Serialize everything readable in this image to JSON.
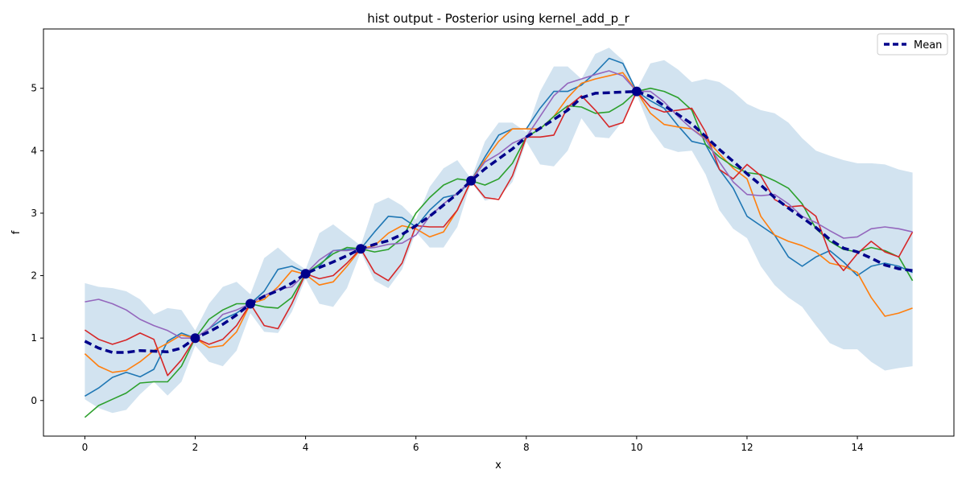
{
  "chart_data": {
    "type": "line",
    "title": "hist output - Posterior using kernel_add_p_r",
    "xlabel": "x",
    "ylabel": "f",
    "xlim": [
      -0.75,
      15.75
    ],
    "ylim": [
      -0.57,
      5.95
    ],
    "xticks": [
      0,
      2,
      4,
      6,
      8,
      10,
      12,
      14
    ],
    "yticks": [
      0,
      1,
      2,
      3,
      4,
      5
    ],
    "grid": false,
    "legend_placement": "top-right",
    "legend": [
      "Mean"
    ],
    "x": [
      0,
      0.25,
      0.5,
      0.75,
      1,
      1.25,
      1.5,
      1.75,
      2,
      2.25,
      2.5,
      2.75,
      3,
      3.25,
      3.5,
      3.75,
      4,
      4.25,
      4.5,
      4.75,
      5,
      5.25,
      5.5,
      5.75,
      6,
      6.25,
      6.5,
      6.75,
      7,
      7.25,
      7.5,
      7.75,
      8,
      8.25,
      8.5,
      8.75,
      9,
      9.25,
      9.5,
      9.75,
      10,
      10.25,
      10.5,
      10.75,
      11,
      11.25,
      11.5,
      11.75,
      12,
      12.25,
      12.5,
      12.75,
      13,
      13.25,
      13.5,
      13.75,
      14,
      14.25,
      14.5,
      14.75,
      15
    ],
    "mean": {
      "name": "Mean",
      "color": "#00008b",
      "values": [
        0.95,
        0.84,
        0.77,
        0.77,
        0.8,
        0.79,
        0.78,
        0.84,
        1.0,
        1.1,
        1.22,
        1.37,
        1.55,
        1.67,
        1.76,
        1.88,
        2.03,
        2.13,
        2.22,
        2.32,
        2.43,
        2.5,
        2.56,
        2.66,
        2.8,
        2.95,
        3.13,
        3.31,
        3.52,
        3.71,
        3.87,
        4.03,
        4.22,
        4.36,
        4.5,
        4.65,
        4.85,
        4.92,
        4.93,
        4.94,
        4.95,
        4.87,
        4.72,
        4.58,
        4.43,
        4.23,
        4.02,
        3.83,
        3.63,
        3.45,
        3.25,
        3.08,
        2.93,
        2.77,
        2.58,
        2.44,
        2.38,
        2.28,
        2.17,
        2.11,
        2.08
      ]
    },
    "band": {
      "color": "#a6c8e2",
      "upper": [
        1.88,
        1.82,
        1.8,
        1.75,
        1.62,
        1.38,
        1.48,
        1.45,
        1.12,
        1.55,
        1.82,
        1.9,
        1.7,
        2.28,
        2.45,
        2.25,
        2.1,
        2.68,
        2.82,
        2.65,
        2.48,
        3.15,
        3.25,
        3.12,
        2.9,
        3.42,
        3.72,
        3.85,
        3.55,
        4.15,
        4.45,
        4.45,
        4.3,
        4.95,
        5.35,
        5.35,
        5.15,
        5.55,
        5.65,
        5.45,
        4.98,
        5.4,
        5.45,
        5.3,
        5.1,
        5.15,
        5.1,
        4.95,
        4.75,
        4.65,
        4.6,
        4.45,
        4.2,
        4.0,
        3.92,
        3.85,
        3.8,
        3.8,
        3.78,
        3.7,
        3.65
      ],
      "lower": [
        0.02,
        -0.12,
        -0.2,
        -0.15,
        0.1,
        0.3,
        0.08,
        0.3,
        0.88,
        0.62,
        0.55,
        0.8,
        1.4,
        1.1,
        1.08,
        1.42,
        1.95,
        1.55,
        1.5,
        1.8,
        2.38,
        1.92,
        1.8,
        2.1,
        2.7,
        2.45,
        2.45,
        2.78,
        3.5,
        3.2,
        3.25,
        3.5,
        4.15,
        3.78,
        3.75,
        4.0,
        4.52,
        4.22,
        4.2,
        4.48,
        4.9,
        4.35,
        4.05,
        3.98,
        4.0,
        3.62,
        3.05,
        2.75,
        2.6,
        2.15,
        1.85,
        1.65,
        1.5,
        1.2,
        0.92,
        0.82,
        0.82,
        0.62,
        0.48,
        0.52,
        0.55
      ]
    },
    "samples": [
      {
        "color": "#1f77b4",
        "values": [
          0.07,
          0.2,
          0.37,
          0.45,
          0.38,
          0.5,
          0.95,
          1.08,
          1.0,
          1.15,
          1.3,
          1.4,
          1.55,
          1.75,
          2.1,
          2.15,
          2.05,
          2.15,
          2.4,
          2.42,
          2.43,
          2.7,
          2.95,
          2.93,
          2.78,
          3.05,
          3.25,
          3.3,
          3.52,
          3.9,
          4.25,
          4.35,
          4.35,
          4.68,
          4.95,
          4.95,
          5.05,
          5.25,
          5.48,
          5.4,
          4.95,
          4.8,
          4.68,
          4.4,
          4.15,
          4.1,
          3.7,
          3.4,
          2.95,
          2.8,
          2.65,
          2.3,
          2.15,
          2.3,
          2.4,
          2.22,
          2.0,
          2.15,
          2.2,
          2.15,
          2.05
        ]
      },
      {
        "color": "#ff7f0e",
        "values": [
          0.75,
          0.55,
          0.45,
          0.48,
          0.62,
          0.8,
          0.92,
          1.05,
          1.0,
          0.85,
          0.88,
          1.1,
          1.55,
          1.62,
          1.82,
          2.08,
          2.02,
          1.85,
          1.9,
          2.15,
          2.43,
          2.48,
          2.68,
          2.8,
          2.75,
          2.62,
          2.7,
          3.05,
          3.52,
          3.85,
          4.15,
          4.35,
          4.35,
          4.35,
          4.55,
          4.85,
          5.08,
          5.15,
          5.2,
          5.25,
          4.95,
          4.6,
          4.42,
          4.38,
          4.35,
          4.2,
          3.95,
          3.72,
          3.55,
          2.95,
          2.65,
          2.55,
          2.48,
          2.38,
          2.2,
          2.15,
          2.05,
          1.65,
          1.35,
          1.4,
          1.48
        ]
      },
      {
        "color": "#2ca02c",
        "values": [
          -0.27,
          -0.08,
          0.02,
          0.12,
          0.28,
          0.3,
          0.3,
          0.55,
          1.0,
          1.3,
          1.45,
          1.55,
          1.55,
          1.5,
          1.48,
          1.65,
          2.03,
          2.18,
          2.35,
          2.45,
          2.43,
          2.38,
          2.42,
          2.6,
          3.0,
          3.25,
          3.45,
          3.55,
          3.52,
          3.45,
          3.55,
          3.8,
          4.22,
          4.35,
          4.55,
          4.72,
          4.7,
          4.6,
          4.62,
          4.75,
          4.95,
          5.0,
          4.95,
          4.85,
          4.65,
          4.1,
          3.9,
          3.75,
          3.65,
          3.62,
          3.52,
          3.4,
          3.15,
          2.75,
          2.55,
          2.42,
          2.38,
          2.45,
          2.4,
          2.3,
          1.92
        ]
      },
      {
        "color": "#d62728",
        "values": [
          1.13,
          0.98,
          0.9,
          0.97,
          1.08,
          0.98,
          0.4,
          0.65,
          1.0,
          0.9,
          0.98,
          1.2,
          1.55,
          1.2,
          1.15,
          1.55,
          2.03,
          1.95,
          2.0,
          2.2,
          2.43,
          2.05,
          1.92,
          2.2,
          2.8,
          2.78,
          2.78,
          3.05,
          3.52,
          3.25,
          3.22,
          3.6,
          4.22,
          4.22,
          4.25,
          4.7,
          4.88,
          4.65,
          4.38,
          4.45,
          4.95,
          4.7,
          4.62,
          4.65,
          4.68,
          4.3,
          3.7,
          3.55,
          3.78,
          3.6,
          3.22,
          3.1,
          3.12,
          2.95,
          2.35,
          2.08,
          2.35,
          2.55,
          2.38,
          2.3,
          2.7
        ]
      },
      {
        "color": "#9467bd",
        "values": [
          1.58,
          1.62,
          1.55,
          1.45,
          1.3,
          1.2,
          1.12,
          1.0,
          1.0,
          1.15,
          1.38,
          1.45,
          1.55,
          1.68,
          1.78,
          1.82,
          2.03,
          2.25,
          2.4,
          2.4,
          2.43,
          2.45,
          2.5,
          2.52,
          2.65,
          2.95,
          3.15,
          3.32,
          3.52,
          3.82,
          3.95,
          4.12,
          4.22,
          4.55,
          4.88,
          5.08,
          5.15,
          5.22,
          5.28,
          5.2,
          4.95,
          4.95,
          4.78,
          4.55,
          4.35,
          4.18,
          3.82,
          3.5,
          3.3,
          3.28,
          3.3,
          3.15,
          2.95,
          2.85,
          2.72,
          2.6,
          2.62,
          2.75,
          2.78,
          2.75,
          2.7
        ]
      }
    ],
    "observations": {
      "color": "#00008b",
      "x": [
        2,
        3,
        4,
        5,
        7,
        10
      ],
      "y": [
        1.0,
        1.55,
        2.03,
        2.43,
        3.52,
        4.95
      ]
    }
  }
}
